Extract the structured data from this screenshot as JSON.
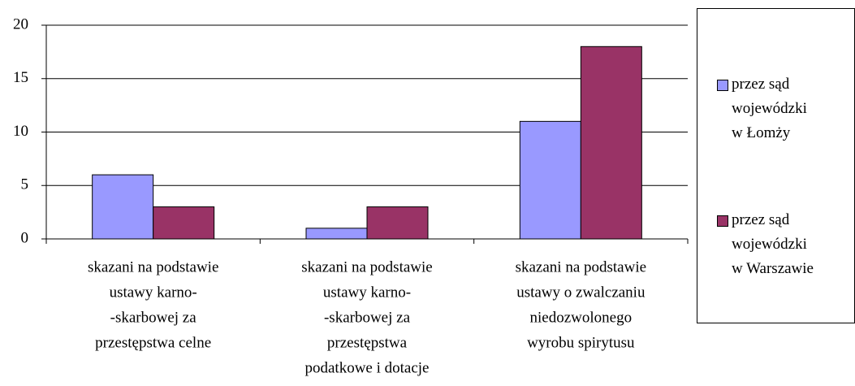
{
  "chart_data": {
    "type": "bar",
    "categories": [
      [
        "skazani na podstawie",
        "ustawy karno-",
        "-skarbowej za",
        "przestępstwa celne"
      ],
      [
        "skazani na podstawie",
        "ustawy karno-",
        "-skarbowej za",
        "przestępstwa",
        "podatkowe i dotacje"
      ],
      [
        "skazani na podstawie",
        "ustawy o zwalczaniu",
        "niedozwolonego",
        "wyrobu spirytusu"
      ]
    ],
    "series": [
      {
        "name": "przez sąd wojewódzki w Łomży",
        "color": "#9999ff",
        "values": [
          6,
          1,
          11
        ]
      },
      {
        "name": "przez sąd wojewódzki w Warszawie",
        "color": "#993366",
        "values": [
          3,
          3,
          18
        ]
      }
    ],
    "ylim": [
      0,
      20
    ],
    "yticks": [
      0,
      5,
      10,
      15,
      20
    ],
    "grid": true,
    "legend": "right"
  }
}
